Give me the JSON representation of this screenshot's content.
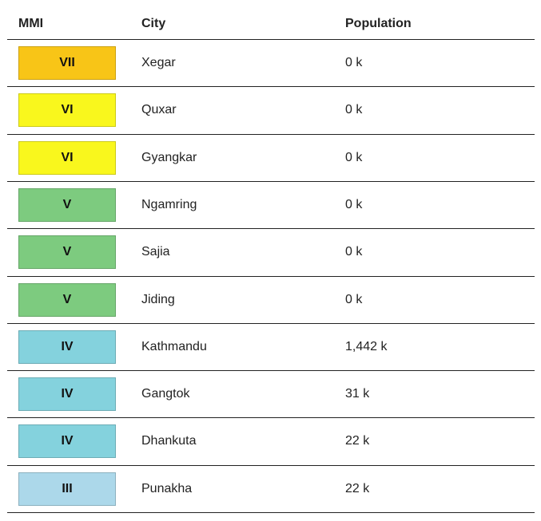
{
  "table": {
    "headers": [
      "MMI",
      "City",
      "Population"
    ],
    "rows": [
      {
        "mmi": "VII",
        "color": "#f8c517",
        "city": "Xegar",
        "population": "0 k"
      },
      {
        "mmi": "VI",
        "color": "#f9f71d",
        "city": "Quxar",
        "population": "0 k"
      },
      {
        "mmi": "VI",
        "color": "#f9f71d",
        "city": "Gyangkar",
        "population": "0 k"
      },
      {
        "mmi": "V",
        "color": "#7dcb7f",
        "city": "Ngamring",
        "population": "0 k"
      },
      {
        "mmi": "V",
        "color": "#7dcb7f",
        "city": "Sajia",
        "population": "0 k"
      },
      {
        "mmi": "V",
        "color": "#7dcb7f",
        "city": "Jiding",
        "population": "0 k"
      },
      {
        "mmi": "IV",
        "color": "#84d2dd",
        "city": "Kathmandu",
        "population": "1,442 k"
      },
      {
        "mmi": "IV",
        "color": "#84d2dd",
        "city": "Gangtok",
        "population": "31 k"
      },
      {
        "mmi": "IV",
        "color": "#84d2dd",
        "city": "Dhankuta",
        "population": "22 k"
      },
      {
        "mmi": "III",
        "color": "#acd8ea",
        "city": "Punakha",
        "population": "22 k"
      }
    ]
  }
}
